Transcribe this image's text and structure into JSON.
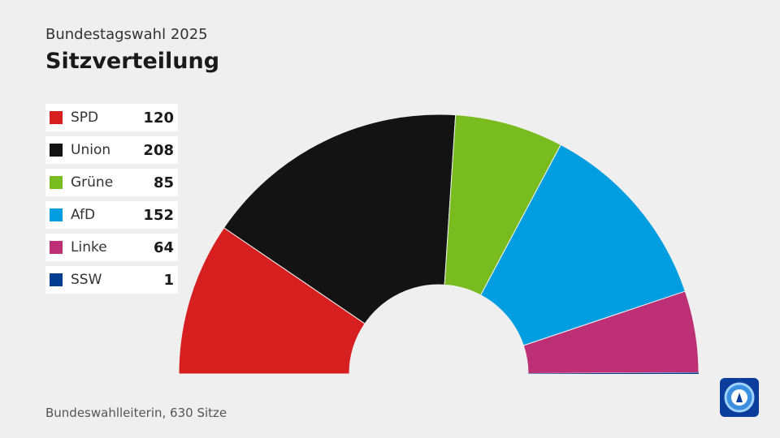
{
  "header": {
    "subtitle": "Bundestagswahl 2025",
    "title": "Sitzverteilung"
  },
  "footer": {
    "source": "Bundeswahlleiterin, 630 Sitze"
  },
  "logo": {
    "icon": "ard-logo-icon",
    "color": "#0a3e9a"
  },
  "chart_data": {
    "type": "pie",
    "subtype": "half-donut parliament seat distribution",
    "title": "Sitzverteilung",
    "subtitle": "Bundestagswahl 2025",
    "total": 630,
    "legend_position": "left",
    "categories": [
      "SPD",
      "Union",
      "Grüne",
      "AfD",
      "Linke",
      "SSW"
    ],
    "values": [
      120,
      208,
      85,
      152,
      64,
      1
    ],
    "colors": [
      "#d71f1f",
      "#131313",
      "#78bc1f",
      "#009ee0",
      "#bd3075",
      "#003c8f"
    ]
  }
}
